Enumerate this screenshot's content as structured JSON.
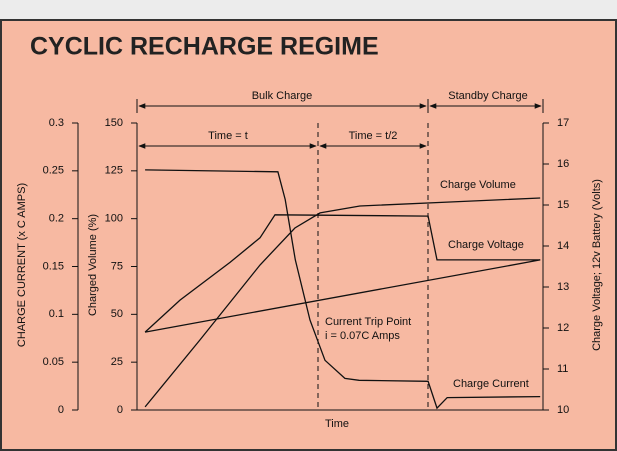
{
  "chart_data": {
    "type": "line",
    "title": "CYCLIC RECHARGE REGIME",
    "xlabel": "Time",
    "xlim": [
      0,
      100
    ],
    "ylabel": "CHARGE CURRENT (x C AMPS)",
    "ylim": [
      0,
      0.3
    ],
    "yticks": [
      0,
      0.05,
      0.1,
      0.15,
      0.2,
      0.25,
      0.3
    ],
    "y3label": "Charged Volume (%)",
    "y3lim": [
      0,
      150
    ],
    "y3ticks": [
      0,
      25,
      50,
      75,
      100,
      125,
      150
    ],
    "y2label": "Charge Voltage; 12v Battery (Volts)",
    "y2lim": [
      10,
      17
    ],
    "y2ticks": [
      10,
      11,
      12,
      13,
      14,
      15,
      16,
      17
    ],
    "phases": [
      "Bulk Charge",
      "Standby Charge"
    ],
    "periods": [
      "Time = t",
      "Time = t/2"
    ],
    "annotations": [
      "Current Trip Point",
      "i = 0.07C Amps"
    ],
    "series": [
      {
        "name": "Charge Current",
        "axis": "y",
        "color": "#111111",
        "x": [
          2,
          34.7,
          36.5,
          39,
          42.6,
          46.3,
          51.2,
          54.7,
          71.7,
          73.9,
          76.4,
          99.3
        ],
        "values": [
          0.251,
          0.249,
          0.22,
          0.157,
          0.094,
          0.052,
          0.033,
          0.031,
          0.03,
          0.002,
          0.013,
          0.014
        ]
      },
      {
        "name": "Charge Volume",
        "axis": "y3",
        "color": "#111111",
        "x": [
          2,
          15.5,
          30.3,
          38.9,
          45.1,
          54.9,
          77.1,
          99.3
        ],
        "values": [
          1.6,
          36.6,
          75.8,
          95.1,
          103,
          106.6,
          108.7,
          110.8
        ]
      },
      {
        "name": "Charge Voltage",
        "axis": "y2",
        "color": "#111111",
        "x": [
          2,
          10.6,
          22.9,
          30.3,
          34,
          71.7,
          73.9,
          99.3
        ],
        "values": [
          11.9,
          12.68,
          13.6,
          14.2,
          14.76,
          14.73,
          13.66,
          13.66
        ]
      },
      {
        "axis": "y2",
        "color": "#111111",
        "x": [
          2,
          99.3
        ],
        "values": [
          11.9,
          13.66
        ]
      }
    ]
  }
}
